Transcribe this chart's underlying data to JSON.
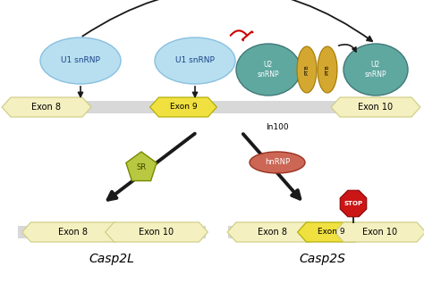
{
  "bg_color": "#ffffff",
  "exon_color": "#f5f0c0",
  "exon9_color": "#f0e040",
  "intron_color": "#d8d8d8",
  "u1_snrnp_color": "#b8dff0",
  "u2_snrnp_color": "#5fa8a0",
  "ptb_color": "#d4a830",
  "sr_color": "#b8c840",
  "hnrnp_color": "#cc6655",
  "stop_color": "#cc1515",
  "arrow_color": "#1a1a1a",
  "red_arrow_color": "#cc0000",
  "casp2l_label": "Casp2L",
  "casp2s_label": "Casp2S",
  "exon8_label": "Exon 8",
  "exon9_label": "Exon 9",
  "exon10_label": "Exon 10",
  "in100_label": "In100",
  "u1_label": "U1 snRNP",
  "u2_label": "U2\nsnRNP",
  "ptb_label": "PTB",
  "sr_label": "SR",
  "hnrnp_label": "hnRNP",
  "stop_label": "STOP"
}
